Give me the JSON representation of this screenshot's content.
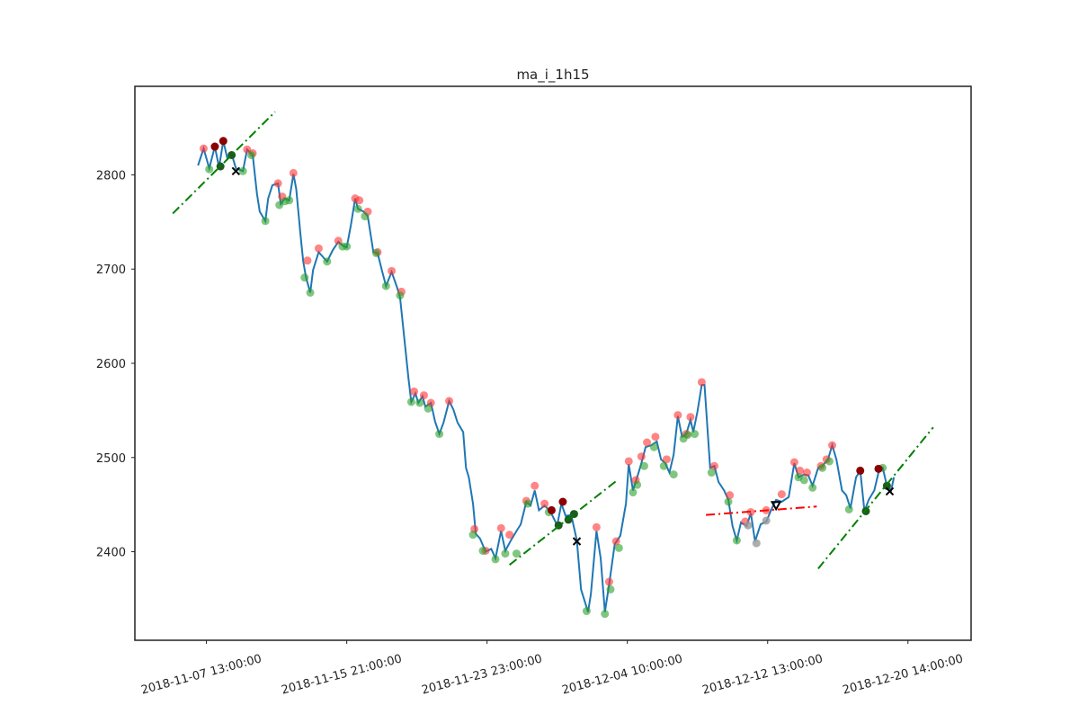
{
  "chart_data": {
    "type": "line",
    "title": "ma_i_1h15",
    "xlim": [
      -51,
      545
    ],
    "ylim": [
      2306,
      2894
    ],
    "xticks": [
      {
        "value": 0,
        "label": "2018-11-07 13:00:00"
      },
      {
        "value": 100,
        "label": "2018-11-15 21:00:00"
      },
      {
        "value": 200,
        "label": "2018-11-23 23:00:00"
      },
      {
        "value": 300,
        "label": "2018-12-04 10:00:00"
      },
      {
        "value": 400,
        "label": "2018-12-12 13:00:00"
      },
      {
        "value": 500,
        "label": "2018-12-20 14:00:00"
      }
    ],
    "yticks": [
      2400,
      2500,
      2600,
      2700,
      2800
    ],
    "series": [
      {
        "style": "line",
        "color": "#1f77b4",
        "x": [
          -6,
          -2,
          2,
          6,
          9,
          12,
          15,
          18,
          21,
          26,
          29,
          33,
          36,
          38,
          42,
          44,
          47,
          51,
          53,
          56,
          59,
          62,
          64,
          67,
          69,
          71,
          74,
          76,
          80,
          83,
          86,
          90,
          94,
          97,
          100,
          103,
          106,
          108,
          112,
          115,
          119,
          122,
          125,
          128,
          132,
          136,
          138,
          141,
          144,
          146,
          149,
          151,
          154,
          156,
          160,
          163,
          166,
          169,
          173,
          176,
          179,
          183,
          185,
          187,
          190,
          192,
          195,
          199,
          203,
          206,
          210,
          213,
          217,
          221,
          224,
          228,
          231,
          234,
          237,
          241,
          245,
          250,
          253,
          256,
          260,
          264,
          267,
          272,
          274,
          278,
          281,
          284,
          287,
          291,
          295,
          299,
          301,
          304,
          308,
          310,
          313,
          317,
          321,
          324,
          327,
          330,
          333,
          336,
          339,
          342,
          345,
          347,
          350,
          353,
          355,
          359,
          362,
          365,
          369,
          372,
          375,
          378,
          381,
          385,
          388,
          391,
          395,
          399,
          403,
          406,
          410,
          415,
          419,
          422,
          426,
          429,
          432,
          436,
          439,
          443,
          446,
          449,
          453,
          456,
          459,
          463,
          466,
          469,
          472,
          476,
          479,
          482,
          485,
          488,
          490
        ],
        "values": [
          2810,
          2828,
          2807,
          2830,
          2808,
          2836,
          2817,
          2822,
          2807,
          2804,
          2827,
          2821,
          2780,
          2761,
          2751,
          2775,
          2789,
          2791,
          2769,
          2775,
          2773,
          2801,
          2785,
          2737,
          2708,
          2691,
          2675,
          2699,
          2718,
          2713,
          2708,
          2720,
          2729,
          2725,
          2723,
          2747,
          2775,
          2764,
          2761,
          2756,
          2718,
          2717,
          2699,
          2682,
          2697,
          2680,
          2670,
          2627,
          2584,
          2559,
          2568,
          2558,
          2565,
          2554,
          2558,
          2538,
          2525,
          2537,
          2560,
          2551,
          2537,
          2527,
          2489,
          2479,
          2451,
          2419,
          2414,
          2400,
          2403,
          2393,
          2422,
          2401,
          2412,
          2422,
          2429,
          2453,
          2449,
          2465,
          2444,
          2449,
          2443,
          2428,
          2451,
          2438,
          2439,
          2412,
          2360,
          2336,
          2355,
          2422,
          2393,
          2336,
          2365,
          2408,
          2417,
          2451,
          2493,
          2465,
          2484,
          2494,
          2511,
          2513,
          2517,
          2498,
          2494,
          2484,
          2503,
          2544,
          2522,
          2525,
          2540,
          2527,
          2549,
          2577,
          2577,
          2489,
          2491,
          2474,
          2465,
          2455,
          2427,
          2412,
          2431,
          2427,
          2441,
          2411,
          2429,
          2432,
          2446,
          2455,
          2453,
          2458,
          2494,
          2479,
          2482,
          2481,
          2470,
          2489,
          2491,
          2498,
          2513,
          2498,
          2465,
          2460,
          2446,
          2479,
          2486,
          2443,
          2455,
          2465,
          2484,
          2489,
          2470,
          2465,
          2479
        ]
      },
      {
        "style": "points",
        "marker": "circle",
        "color": "#ff3333",
        "opacity": 0.6,
        "x": [
          -2,
          6,
          29,
          33,
          51,
          54,
          62,
          72,
          80,
          94,
          106,
          109,
          115,
          122,
          132,
          139,
          148,
          155,
          160,
          173,
          191,
          199,
          210,
          216,
          228,
          234,
          241,
          278,
          287,
          292,
          301,
          306,
          310,
          314,
          320,
          328,
          336,
          342,
          345,
          353,
          362,
          373,
          384,
          388,
          399,
          410,
          419,
          423,
          428,
          438,
          442,
          446
        ],
        "values": [
          2828,
          2830,
          2827,
          2823,
          2791,
          2777,
          2802,
          2709,
          2722,
          2730,
          2775,
          2773,
          2761,
          2718,
          2698,
          2676,
          2570,
          2566,
          2558,
          2560,
          2424,
          2401,
          2425,
          2418,
          2454,
          2470,
          2451,
          2426,
          2368,
          2411,
          2496,
          2476,
          2501,
          2516,
          2522,
          2498,
          2545,
          2525,
          2543,
          2580,
          2491,
          2460,
          2432,
          2442,
          2444,
          2461,
          2495,
          2486,
          2484,
          2491,
          2498,
          2513
        ]
      },
      {
        "style": "points",
        "marker": "circle",
        "color": "#2ca02c",
        "opacity": 0.6,
        "x": [
          2,
          26,
          32,
          42,
          52,
          56,
          59,
          70,
          74,
          86,
          97,
          100,
          108,
          113,
          121,
          128,
          138,
          146,
          152,
          158,
          166,
          190,
          197,
          206,
          213,
          221,
          229,
          244,
          271,
          284,
          288,
          294,
          304,
          307,
          312,
          319,
          326,
          333,
          340,
          343,
          348,
          360,
          372,
          378,
          422,
          426,
          432,
          439,
          444,
          458,
          482
        ],
        "values": [
          2806,
          2804,
          2821,
          2751,
          2768,
          2772,
          2773,
          2691,
          2675,
          2708,
          2724,
          2724,
          2764,
          2756,
          2717,
          2682,
          2672,
          2559,
          2558,
          2552,
          2525,
          2418,
          2401,
          2392,
          2398,
          2398,
          2451,
          2442,
          2337,
          2334,
          2360,
          2404,
          2463,
          2471,
          2491,
          2511,
          2491,
          2482,
          2520,
          2524,
          2525,
          2484,
          2453,
          2412,
          2479,
          2476,
          2468,
          2489,
          2496,
          2445,
          2489
        ]
      },
      {
        "style": "points",
        "marker": "circle",
        "color": "#8b0000",
        "opacity": 1,
        "x": [
          12,
          6,
          254,
          246,
          466,
          479
        ],
        "values": [
          2836,
          2830,
          2453,
          2444,
          2486,
          2488
        ]
      },
      {
        "style": "points",
        "marker": "circle",
        "color": "#1e5a1e",
        "opacity": 1,
        "x": [
          10,
          18,
          251,
          258,
          262,
          470,
          485
        ],
        "values": [
          2809,
          2821,
          2428,
          2434,
          2440,
          2443,
          2470
        ]
      },
      {
        "style": "points",
        "marker": "circle",
        "color": "#999999",
        "opacity": 0.8,
        "x": [
          386,
          392,
          399
        ],
        "values": [
          2428,
          2409,
          2433
        ]
      },
      {
        "style": "points",
        "marker": "x",
        "color": "#000000",
        "opacity": 1,
        "x": [
          21,
          264,
          487
        ],
        "values": [
          2804,
          2411,
          2464
        ]
      },
      {
        "style": "points",
        "marker": "triangle",
        "color": "#000000",
        "opacity": 1,
        "x": [
          406
        ],
        "values": [
          2449
        ]
      },
      {
        "style": "dashdot",
        "color": "#008000",
        "x": [
          -24,
          49
        ],
        "values": [
          2759,
          2867
        ]
      },
      {
        "style": "dashdot",
        "color": "#008000",
        "x": [
          216,
          292
        ],
        "values": [
          2386,
          2475
        ]
      },
      {
        "style": "dashdot",
        "color": "#ff0000",
        "x": [
          356,
          435
        ],
        "values": [
          2439,
          2448
        ]
      },
      {
        "style": "dashdot",
        "color": "#008000",
        "x": [
          436,
          518
        ],
        "values": [
          2382,
          2532
        ]
      }
    ]
  }
}
